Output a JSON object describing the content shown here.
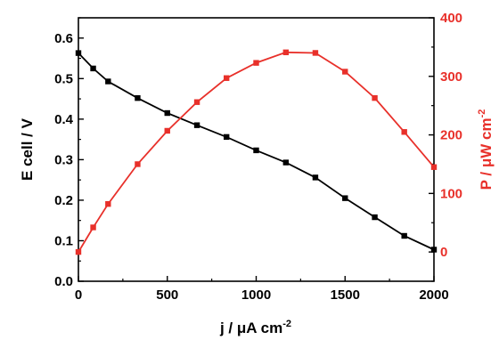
{
  "chart_data": {
    "type": "line",
    "title": "",
    "grid": false,
    "colors": {
      "left": "#000000",
      "right": "#e8302a"
    },
    "x": {
      "label": "j / μA cm",
      "label_sup": "-2",
      "range": [
        0,
        2000
      ],
      "ticks": [
        0,
        500,
        1000,
        1500,
        2000
      ],
      "tick_labels": [
        "0",
        "500",
        "1000",
        "1500",
        "2000"
      ]
    },
    "y_left": {
      "label": "E cell / V",
      "range": [
        0,
        0.65
      ],
      "ticks": [
        0,
        0.1,
        0.2,
        0.3,
        0.4,
        0.5,
        0.6
      ],
      "tick_labels": [
        "0.0",
        "0.1",
        "0.2",
        "0.3",
        "0.4",
        "0.5",
        "0.6"
      ]
    },
    "y_right": {
      "label": "P / μW cm",
      "label_sup": "-2",
      "range": [
        -50,
        400
      ],
      "ticks": [
        0,
        100,
        200,
        300,
        400
      ],
      "tick_labels": [
        "0",
        "100",
        "200",
        "300",
        "400"
      ]
    },
    "series": [
      {
        "axis": "left",
        "color": "#000000",
        "x": [
          0,
          83,
          167,
          333,
          500,
          667,
          833,
          1000,
          1167,
          1333,
          1500,
          1667,
          1833,
          2000
        ],
        "y": [
          0.563,
          0.525,
          0.493,
          0.452,
          0.415,
          0.385,
          0.356,
          0.323,
          0.293,
          0.256,
          0.205,
          0.158,
          0.112,
          0.078
        ]
      },
      {
        "axis": "right",
        "color": "#e8302a",
        "x": [
          0,
          83,
          167,
          333,
          500,
          667,
          833,
          1000,
          1167,
          1333,
          1500,
          1667,
          1833,
          2000
        ],
        "y": [
          0,
          42,
          82,
          150,
          207,
          256,
          297,
          323,
          341,
          340,
          308,
          263,
          205,
          145
        ]
      }
    ]
  }
}
